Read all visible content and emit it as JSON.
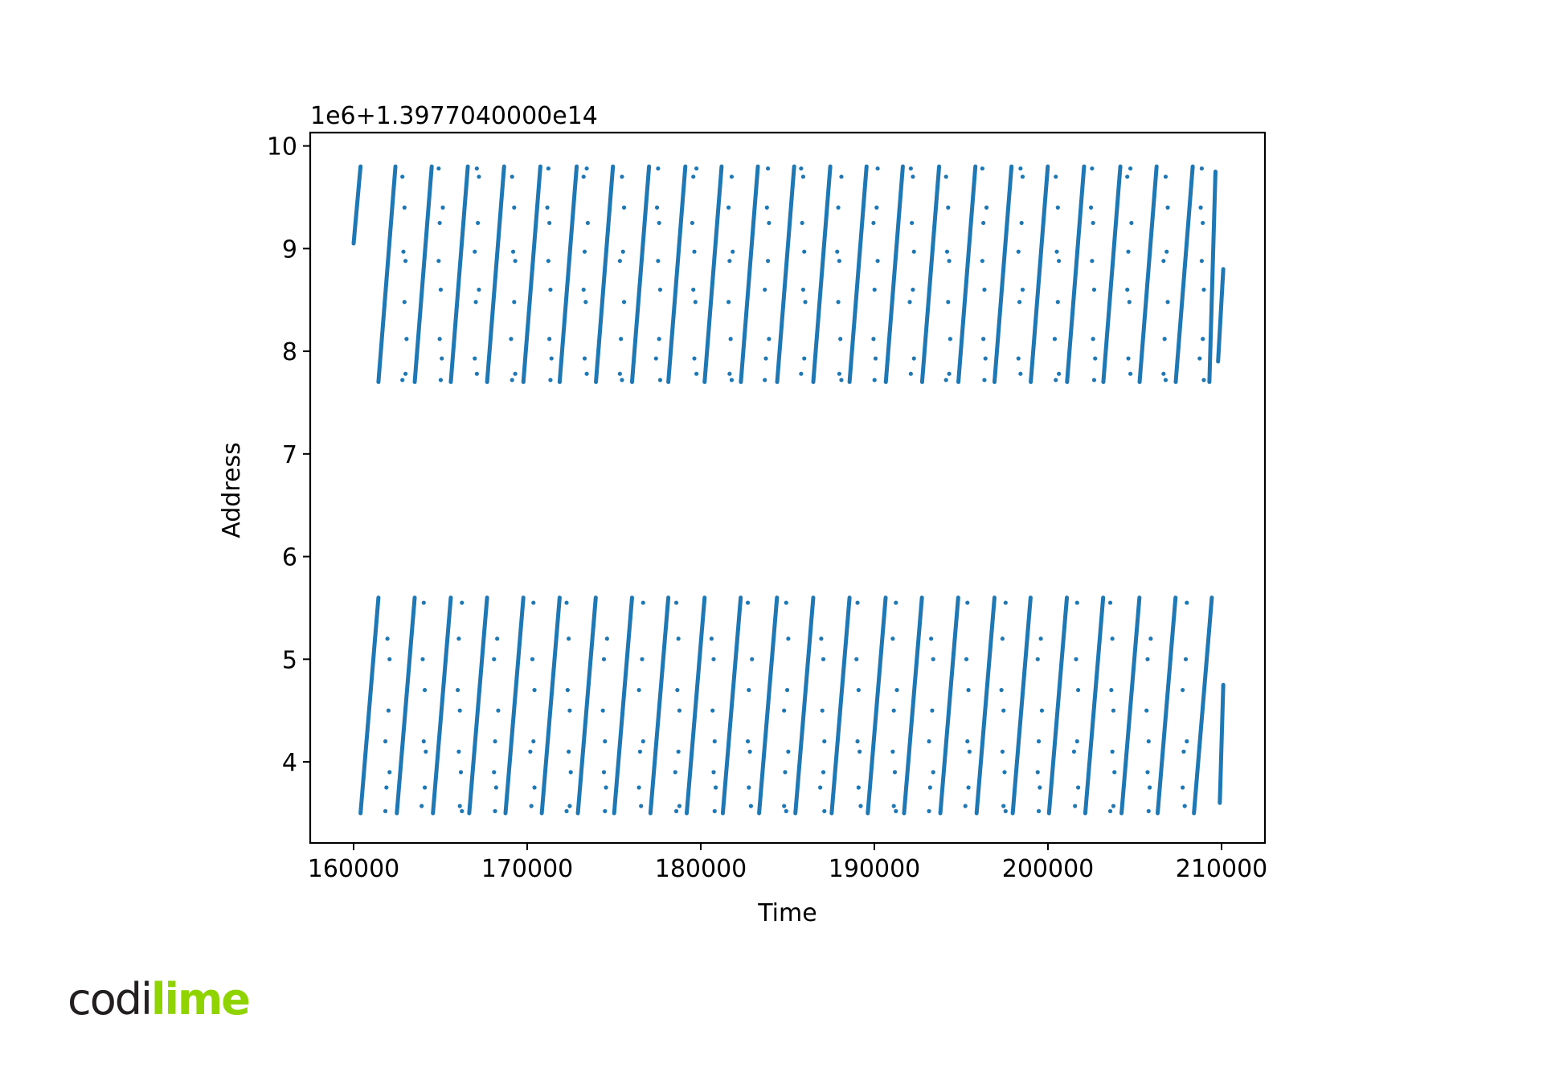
{
  "chart_data": {
    "type": "scatter",
    "offset_label": "1e6+1.3977040000e14",
    "xlabel": "Time",
    "ylabel": "Address",
    "xlim": [
      157500,
      212500
    ],
    "ylim": [
      3.21,
      10.13
    ],
    "x_ticks": [
      160000,
      170000,
      180000,
      190000,
      200000,
      210000
    ],
    "x_tick_labels": [
      "160000",
      "170000",
      "180000",
      "190000",
      "200000",
      "210000"
    ],
    "y_ticks": [
      4,
      5,
      6,
      7,
      8,
      9,
      10
    ],
    "y_tick_labels": [
      "4",
      "5",
      "6",
      "7",
      "8",
      "9",
      "10"
    ],
    "grid": false,
    "color": "#1f77b4",
    "bands": [
      {
        "y_range": [
          7.7,
          9.8
        ],
        "sweeps": [
          [
            160000,
            9.05,
            160400,
            9.8
          ],
          [
            161430,
            7.7,
            162410,
            9.8
          ],
          [
            163520,
            7.7,
            164500,
            9.8
          ],
          [
            165600,
            7.7,
            166580,
            9.8
          ],
          [
            167690,
            7.7,
            168670,
            9.8
          ],
          [
            169780,
            7.7,
            170760,
            9.8
          ],
          [
            171870,
            7.7,
            172850,
            9.8
          ],
          [
            173960,
            7.7,
            174940,
            9.8
          ],
          [
            176040,
            7.7,
            177020,
            9.8
          ],
          [
            178130,
            7.7,
            179110,
            9.8
          ],
          [
            180220,
            7.7,
            181200,
            9.8
          ],
          [
            182310,
            7.7,
            183290,
            9.8
          ],
          [
            184400,
            7.7,
            185380,
            9.8
          ],
          [
            186480,
            7.7,
            187460,
            9.8
          ],
          [
            188570,
            7.7,
            189550,
            9.8
          ],
          [
            190660,
            7.7,
            191640,
            9.8
          ],
          [
            192750,
            7.7,
            193730,
            9.8
          ],
          [
            194840,
            7.7,
            195820,
            9.8
          ],
          [
            196920,
            7.7,
            197900,
            9.8
          ],
          [
            199010,
            7.7,
            199990,
            9.8
          ],
          [
            201100,
            7.7,
            202080,
            9.8
          ],
          [
            203190,
            7.7,
            204170,
            9.8
          ],
          [
            205280,
            7.7,
            206260,
            9.8
          ],
          [
            207360,
            7.7,
            208340,
            9.8
          ],
          [
            209300,
            7.7,
            209650,
            9.75
          ],
          [
            209800,
            7.9,
            210100,
            8.8
          ]
        ],
        "dot_columns": [
          162930,
          165020,
          167100,
          169190,
          171280,
          173370,
          175460,
          177540,
          179630,
          181720,
          183810,
          185900,
          187980,
          190070,
          192160,
          194250,
          196340,
          198420,
          200510,
          202600,
          204690,
          206780,
          208860
        ],
        "dot_y": [
          7.72,
          7.78,
          7.93,
          8.12,
          8.48,
          8.6,
          8.88,
          8.97,
          9.25,
          9.4,
          9.7,
          9.78
        ]
      },
      {
        "y_range": [
          3.5,
          5.6
        ],
        "sweeps": [
          [
            160400,
            3.5,
            161430,
            5.6
          ],
          [
            162490,
            3.5,
            163520,
            5.6
          ],
          [
            164570,
            3.5,
            165600,
            5.6
          ],
          [
            166660,
            3.5,
            167690,
            5.6
          ],
          [
            168750,
            3.5,
            169780,
            5.6
          ],
          [
            170840,
            3.5,
            171870,
            5.6
          ],
          [
            172920,
            3.5,
            173950,
            5.6
          ],
          [
            175010,
            3.5,
            176040,
            5.6
          ],
          [
            177100,
            3.5,
            178130,
            5.6
          ],
          [
            179190,
            3.5,
            180220,
            5.6
          ],
          [
            181270,
            3.5,
            182300,
            5.6
          ],
          [
            183360,
            3.5,
            184390,
            5.6
          ],
          [
            185450,
            3.5,
            186480,
            5.6
          ],
          [
            187540,
            3.5,
            188570,
            5.6
          ],
          [
            189620,
            3.5,
            190650,
            5.6
          ],
          [
            191710,
            3.5,
            192740,
            5.6
          ],
          [
            193800,
            3.5,
            194830,
            5.6
          ],
          [
            195890,
            3.5,
            196920,
            5.6
          ],
          [
            197970,
            3.5,
            199000,
            5.6
          ],
          [
            200060,
            3.5,
            201090,
            5.6
          ],
          [
            202150,
            3.5,
            203180,
            5.6
          ],
          [
            204240,
            3.5,
            205270,
            5.6
          ],
          [
            206320,
            3.5,
            207350,
            5.6
          ],
          [
            208410,
            3.5,
            209440,
            5.6
          ],
          [
            209900,
            3.6,
            210100,
            4.75
          ]
        ],
        "dot_columns": [
          161950,
          164040,
          166120,
          168210,
          170300,
          172390,
          174480,
          176560,
          178650,
          180740,
          182830,
          184920,
          187000,
          189090,
          191180,
          193270,
          195360,
          197440,
          199530,
          201620,
          203710,
          205800,
          207880
        ],
        "dot_y": [
          3.52,
          3.57,
          3.75,
          3.9,
          4.1,
          4.2,
          4.5,
          4.7,
          5.0,
          5.2,
          5.55
        ]
      }
    ]
  },
  "logo": {
    "part1": "codi",
    "part2": "lime"
  }
}
